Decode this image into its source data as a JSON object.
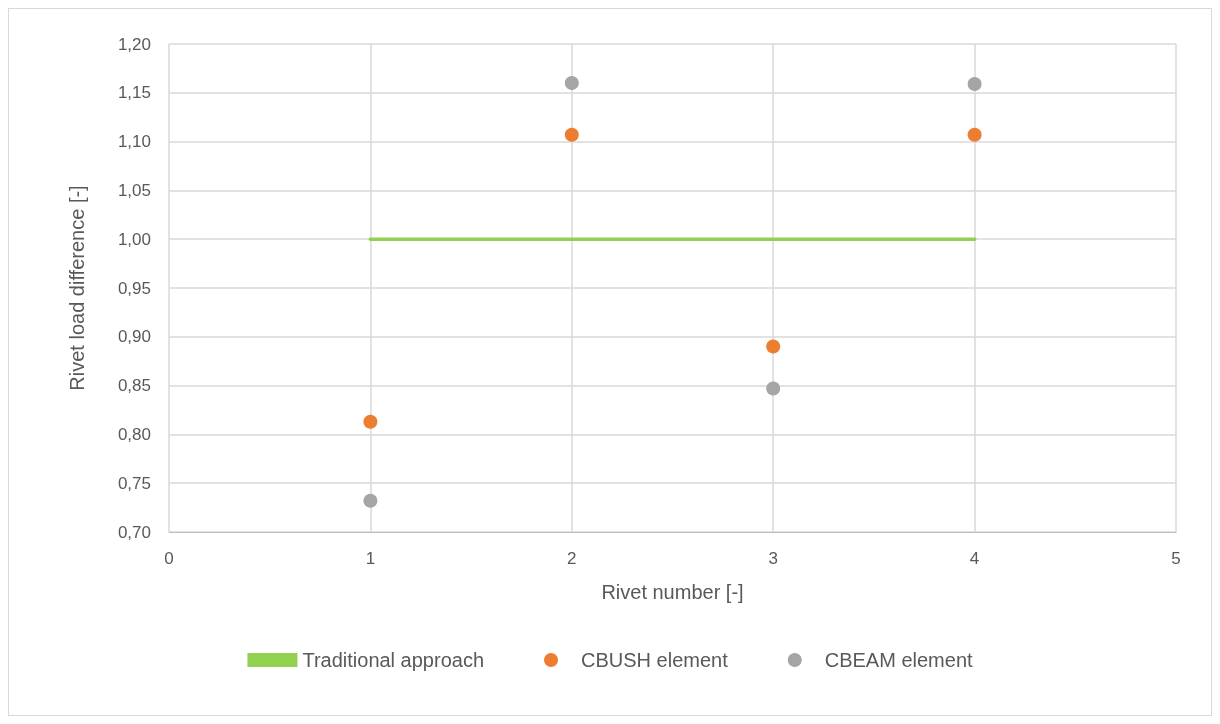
{
  "chart_data": {
    "type": "scatter",
    "xlabel": "Rivet number [-]",
    "ylabel": "Rivet load difference [-]",
    "xlim": [
      0,
      5
    ],
    "xticks": [
      0,
      1,
      2,
      3,
      4,
      5
    ],
    "ylim": [
      0.7,
      1.2
    ],
    "yticks": [
      {
        "value": 0.7,
        "label": "0,70"
      },
      {
        "value": 0.75,
        "label": "0,75"
      },
      {
        "value": 0.8,
        "label": "0,80"
      },
      {
        "value": 0.85,
        "label": "0,85"
      },
      {
        "value": 0.9,
        "label": "0,90"
      },
      {
        "value": 0.95,
        "label": "0,95"
      },
      {
        "value": 1.0,
        "label": "1,00"
      },
      {
        "value": 1.05,
        "label": "1,05"
      },
      {
        "value": 1.1,
        "label": "1,10"
      },
      {
        "value": 1.15,
        "label": "1,15"
      },
      {
        "value": 1.2,
        "label": "1,20"
      }
    ],
    "grid": true,
    "legend": "bottom",
    "series": [
      {
        "name": "Traditional approach",
        "type": "line",
        "marker": "none",
        "color": "#92d050",
        "x": [
          1,
          2,
          3,
          4
        ],
        "values": [
          1.0,
          1.0,
          1.0,
          1.0
        ]
      },
      {
        "name": "CBUSH element",
        "marker": "circle",
        "color": "#ed7d31",
        "x": [
          1,
          2,
          3,
          4
        ],
        "values": [
          0.813,
          1.107,
          0.89,
          1.107
        ]
      },
      {
        "name": "CBEAM element",
        "marker": "circle",
        "color": "#a5a5a5",
        "x": [
          1,
          2,
          3,
          4
        ],
        "values": [
          0.732,
          1.16,
          0.847,
          1.159
        ]
      }
    ]
  }
}
